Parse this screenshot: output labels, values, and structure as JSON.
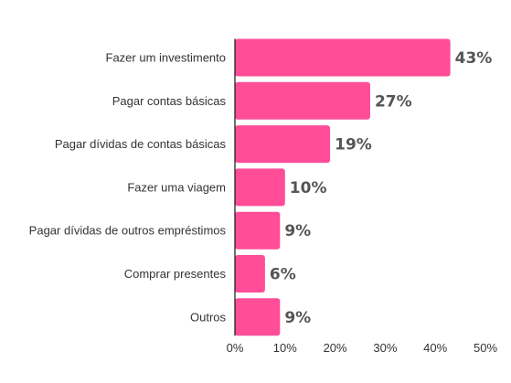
{
  "chart_data": {
    "type": "bar",
    "orientation": "horizontal",
    "categories": [
      "Fazer um investimento",
      "Pagar contas básicas",
      "Pagar dívidas de contas básicas",
      "Fazer uma viagem",
      "Pagar dívidas de outros empréstimos",
      "Comprar presentes",
      "Outros"
    ],
    "values": [
      43,
      27,
      19,
      10,
      9,
      6,
      9
    ],
    "value_labels": [
      "43%",
      "27%",
      "19%",
      "10%",
      "9%",
      "6%",
      "9%"
    ],
    "x_ticks": [
      0,
      10,
      20,
      30,
      40,
      50
    ],
    "x_tick_labels": [
      "0%",
      "10%",
      "20%",
      "30%",
      "40%",
      "50%"
    ],
    "xlim": [
      0,
      50
    ],
    "title": "",
    "xlabel": "",
    "ylabel": "",
    "grid": false,
    "bar_color": "#ff4d98"
  }
}
